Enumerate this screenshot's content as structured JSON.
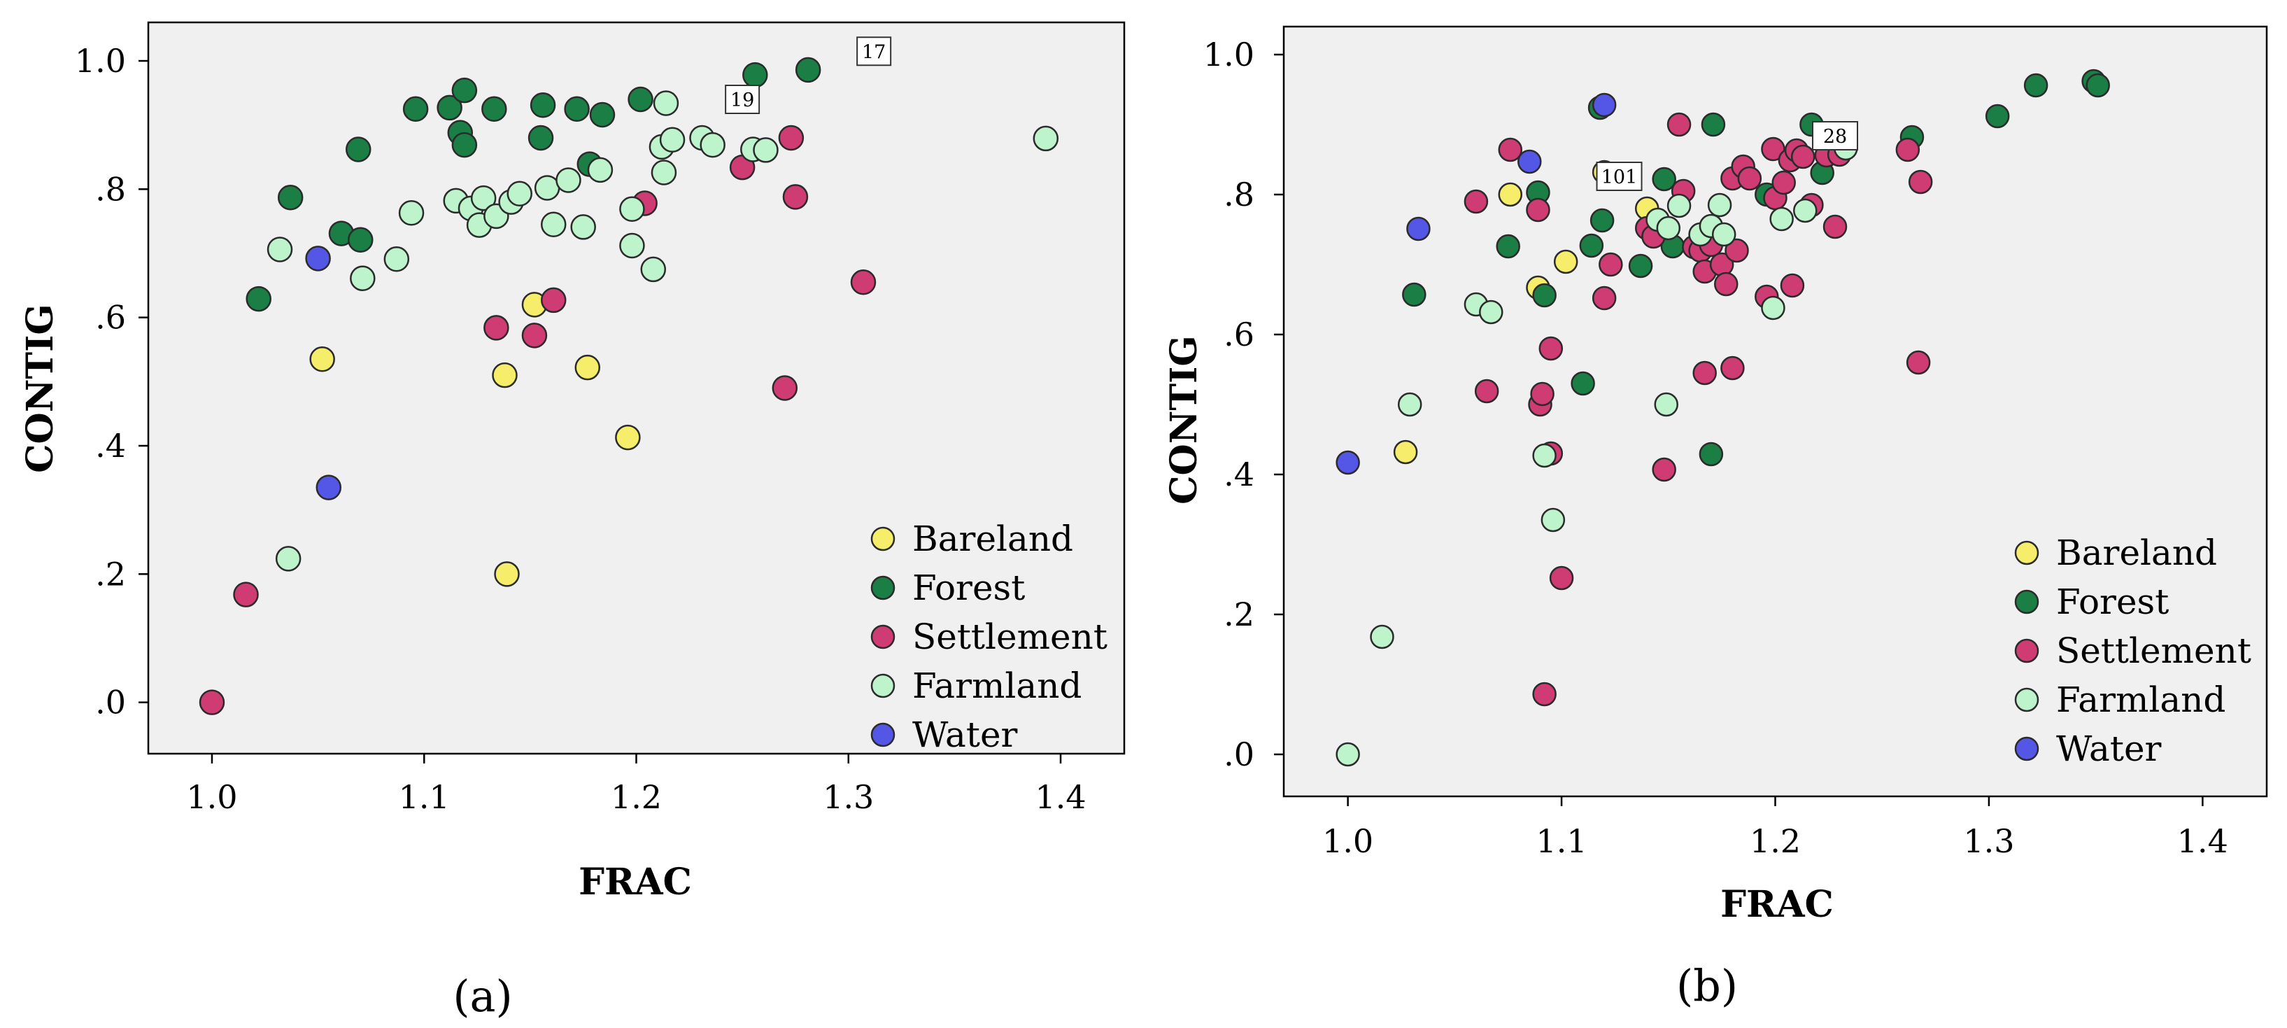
{
  "chart_data": [
    {
      "type": "scatter",
      "panel_label": "(a)",
      "xlabel": "FRAC",
      "ylabel": "CONTIG",
      "xlim": [
        0.97,
        1.43
      ],
      "ylim": [
        -0.08,
        1.06
      ],
      "x_ticks": [
        "1.0",
        "1.1",
        "1.2",
        "1.3",
        "1.4"
      ],
      "y_ticks": [
        ".0",
        ".2",
        ".4",
        ".6",
        ".8",
        "1.0"
      ],
      "grid": false,
      "legend_position": "bottom-right",
      "series": [
        {
          "name": "Bareland",
          "color": "#f6ee6a",
          "points": [
            [
              1.052,
              0.535
            ],
            [
              1.138,
              0.51
            ],
            [
              1.152,
              0.62
            ],
            [
              1.177,
              0.522
            ],
            [
              1.196,
              0.413
            ],
            [
              1.139,
              0.2
            ]
          ]
        },
        {
          "name": "Forest",
          "color": "#1b7e45",
          "points": [
            [
              1.022,
              0.629
            ],
            [
              1.037,
              0.787
            ],
            [
              1.061,
              0.731
            ],
            [
              1.069,
              0.862
            ],
            [
              1.07,
              0.721
            ],
            [
              1.096,
              0.925
            ],
            [
              1.112,
              0.927
            ],
            [
              1.117,
              0.888
            ],
            [
              1.119,
              0.869
            ],
            [
              1.119,
              0.954
            ],
            [
              1.133,
              0.925
            ],
            [
              1.155,
              0.88
            ],
            [
              1.156,
              0.931
            ],
            [
              1.172,
              0.925
            ],
            [
              1.178,
              0.839
            ],
            [
              1.184,
              0.916
            ],
            [
              1.202,
              0.94
            ],
            [
              1.256,
              0.978
            ],
            [
              1.281,
              0.986
            ]
          ]
        },
        {
          "name": "Settlement",
          "color": "#cf3c74",
          "points": [
            [
              1.0,
              0.0
            ],
            [
              1.016,
              0.168
            ],
            [
              1.134,
              0.584
            ],
            [
              1.152,
              0.572
            ],
            [
              1.161,
              0.627
            ],
            [
              1.204,
              0.778
            ],
            [
              1.25,
              0.834
            ],
            [
              1.27,
              0.49
            ],
            [
              1.273,
              0.88
            ],
            [
              1.275,
              0.788
            ],
            [
              1.307,
              0.655
            ]
          ]
        },
        {
          "name": "Farmland",
          "color": "#bdf4cc",
          "points": [
            [
              1.032,
              0.706
            ],
            [
              1.036,
              0.224
            ],
            [
              1.071,
              0.661
            ],
            [
              1.087,
              0.691
            ],
            [
              1.094,
              0.763
            ],
            [
              1.115,
              0.782
            ],
            [
              1.122,
              0.77
            ],
            [
              1.126,
              0.744
            ],
            [
              1.128,
              0.786
            ],
            [
              1.134,
              0.758
            ],
            [
              1.141,
              0.78
            ],
            [
              1.145,
              0.793
            ],
            [
              1.158,
              0.802
            ],
            [
              1.161,
              0.745
            ],
            [
              1.168,
              0.814
            ],
            [
              1.175,
              0.741
            ],
            [
              1.183,
              0.83
            ],
            [
              1.198,
              0.712
            ],
            [
              1.198,
              0.769
            ],
            [
              1.208,
              0.675
            ],
            [
              1.212,
              0.866
            ],
            [
              1.213,
              0.826
            ],
            [
              1.214,
              0.934
            ],
            [
              1.217,
              0.877
            ],
            [
              1.231,
              0.88
            ],
            [
              1.236,
              0.869
            ],
            [
              1.255,
              0.862
            ],
            [
              1.261,
              0.861
            ],
            [
              1.393,
              0.879
            ]
          ]
        },
        {
          "name": "Water",
          "color": "#5457e6",
          "points": [
            [
              1.05,
              0.692
            ],
            [
              1.055,
              0.335
            ]
          ]
        }
      ],
      "annotations": [
        {
          "text": "19",
          "x": 1.25,
          "y": 0.94
        },
        {
          "text": "17",
          "x": 1.312,
          "y": 1.015
        }
      ]
    },
    {
      "type": "scatter",
      "panel_label": "(b)",
      "xlabel": "FRAC",
      "ylabel": "CONTIG",
      "xlim": [
        0.97,
        1.43
      ],
      "ylim": [
        -0.06,
        1.04
      ],
      "x_ticks": [
        "1.0",
        "1.1",
        "1.2",
        "1.3",
        "1.4"
      ],
      "y_ticks": [
        ".0",
        ".2",
        ".4",
        ".6",
        ".8",
        "1.0"
      ],
      "grid": false,
      "legend_position": "bottom-right",
      "series": [
        {
          "name": "Bareland",
          "color": "#f6ee6a",
          "points": [
            [
              1.027,
              0.432
            ],
            [
              1.076,
              0.8
            ],
            [
              1.089,
              0.667
            ],
            [
              1.102,
              0.704
            ],
            [
              1.12,
              0.832
            ],
            [
              1.14,
              0.78
            ],
            [
              1.146,
              0.75
            ]
          ]
        },
        {
          "name": "Forest",
          "color": "#1b7e45",
          "points": [
            [
              1.031,
              0.657
            ],
            [
              1.075,
              0.726
            ],
            [
              1.089,
              0.803
            ],
            [
              1.092,
              0.656
            ],
            [
              1.11,
              0.53
            ],
            [
              1.114,
              0.727
            ],
            [
              1.118,
              0.924
            ],
            [
              1.119,
              0.763
            ],
            [
              1.137,
              0.698
            ],
            [
              1.148,
              0.822
            ],
            [
              1.152,
              0.726
            ],
            [
              1.17,
              0.429
            ],
            [
              1.171,
              0.9
            ],
            [
              1.196,
              0.8
            ],
            [
              1.217,
              0.9
            ],
            [
              1.222,
              0.831
            ],
            [
              1.264,
              0.882
            ],
            [
              1.304,
              0.912
            ],
            [
              1.322,
              0.956
            ],
            [
              1.349,
              0.962
            ],
            [
              1.351,
              0.956
            ]
          ]
        },
        {
          "name": "Settlement",
          "color": "#cf3c74",
          "points": [
            [
              1.06,
              0.79
            ],
            [
              1.065,
              0.519
            ],
            [
              1.076,
              0.864
            ],
            [
              1.089,
              0.778
            ],
            [
              1.09,
              0.5
            ],
            [
              1.091,
              0.515
            ],
            [
              1.092,
              0.086
            ],
            [
              1.095,
              0.58
            ],
            [
              1.095,
              0.43
            ],
            [
              1.1,
              0.252
            ],
            [
              1.12,
              0.652
            ],
            [
              1.123,
              0.7
            ],
            [
              1.14,
              0.752
            ],
            [
              1.143,
              0.74
            ],
            [
              1.148,
              0.407
            ],
            [
              1.155,
              0.9
            ],
            [
              1.157,
              0.805
            ],
            [
              1.162,
              0.725
            ],
            [
              1.165,
              0.72
            ],
            [
              1.167,
              0.545
            ],
            [
              1.167,
              0.69
            ],
            [
              1.17,
              0.728
            ],
            [
              1.175,
              0.7
            ],
            [
              1.177,
              0.672
            ],
            [
              1.18,
              0.552
            ],
            [
              1.18,
              0.823
            ],
            [
              1.182,
              0.72
            ],
            [
              1.185,
              0.84
            ],
            [
              1.188,
              0.823
            ],
            [
              1.196,
              0.654
            ],
            [
              1.199,
              0.865
            ],
            [
              1.2,
              0.795
            ],
            [
              1.204,
              0.817
            ],
            [
              1.207,
              0.849
            ],
            [
              1.208,
              0.67
            ],
            [
              1.21,
              0.863
            ],
            [
              1.213,
              0.854
            ],
            [
              1.217,
              0.785
            ],
            [
              1.224,
              0.856
            ],
            [
              1.228,
              0.754
            ],
            [
              1.23,
              0.857
            ],
            [
              1.262,
              0.864
            ],
            [
              1.267,
              0.56
            ],
            [
              1.268,
              0.818
            ]
          ]
        },
        {
          "name": "Farmland",
          "color": "#bdf4cc",
          "points": [
            [
              1.0,
              0.0
            ],
            [
              1.016,
              0.168
            ],
            [
              1.029,
              0.5
            ],
            [
              1.06,
              0.643
            ],
            [
              1.067,
              0.632
            ],
            [
              1.092,
              0.427
            ],
            [
              1.096,
              0.335
            ],
            [
              1.145,
              0.764
            ],
            [
              1.149,
              0.5
            ],
            [
              1.15,
              0.752
            ],
            [
              1.155,
              0.784
            ],
            [
              1.165,
              0.743
            ],
            [
              1.17,
              0.755
            ],
            [
              1.174,
              0.785
            ],
            [
              1.176,
              0.743
            ],
            [
              1.199,
              0.638
            ],
            [
              1.203,
              0.765
            ],
            [
              1.214,
              0.777
            ],
            [
              1.233,
              0.866
            ]
          ]
        },
        {
          "name": "Water",
          "color": "#5457e6",
          "points": [
            [
              1.0,
              0.417
            ],
            [
              1.033,
              0.751
            ],
            [
              1.085,
              0.847
            ],
            [
              1.12,
              0.928
            ]
          ]
        }
      ],
      "annotations": [
        {
          "text": "101",
          "x": 1.127,
          "y": 0.826
        },
        {
          "text": "28",
          "x": 1.228,
          "y": 0.884
        }
      ]
    }
  ]
}
